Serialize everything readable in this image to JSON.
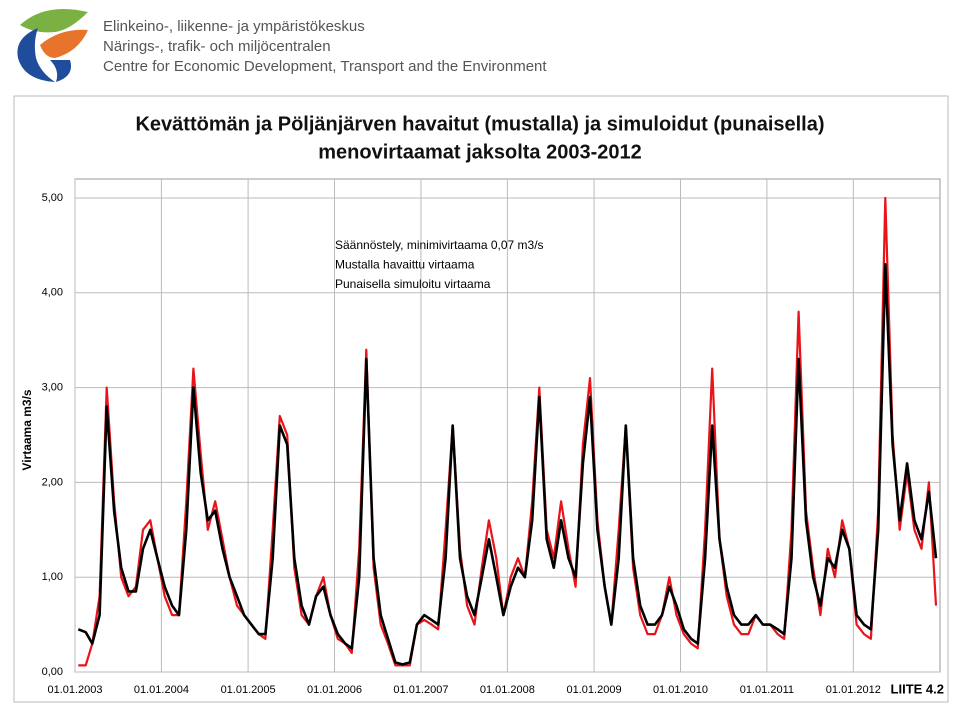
{
  "header": {
    "lines": [
      "Elinkeino-, liikenne- ja ympäristökeskus",
      "Närings-, trafik- och miljöcentralen",
      "Centre for Economic Development, Transport and the Environment"
    ]
  },
  "chart_data": {
    "type": "line",
    "title": [
      "Kevättömän ja Pöljänjärven havaitut (mustalla) ja simuloidut (punaisella)",
      "menovirtaamat jaksolta 2003-2012"
    ],
    "annotations": [
      "Säännöstely, minimivirtaama 0,07 m3/s",
      "Mustalla havaittu  virtaama",
      "Punaisella simuloitu virtaama"
    ],
    "ylabel": "Virtaama m3/s",
    "footer": "LIITE 4.2",
    "grid": true,
    "xlim": [
      "2003-01-01",
      "2013-01-01"
    ],
    "xticks": [
      {
        "value": "2003-01-01",
        "label": "01.01.2003"
      },
      {
        "value": "2004-01-01",
        "label": "01.01.2004"
      },
      {
        "value": "2005-01-01",
        "label": "01.01.2005"
      },
      {
        "value": "2006-01-01",
        "label": "01.01.2006"
      },
      {
        "value": "2007-01-01",
        "label": "01.01.2007"
      },
      {
        "value": "2008-01-01",
        "label": "01.01.2008"
      },
      {
        "value": "2009-01-01",
        "label": "01.01.2009"
      },
      {
        "value": "2010-01-01",
        "label": "01.01.2010"
      },
      {
        "value": "2011-01-01",
        "label": "01.01.2011"
      },
      {
        "value": "2012-01-01",
        "label": "01.01.2012"
      }
    ],
    "ylim": [
      0,
      5.2
    ],
    "yticks": [
      {
        "value": 0,
        "label": "0,00"
      },
      {
        "value": 1,
        "label": "1,00"
      },
      {
        "value": 2,
        "label": "2,00"
      },
      {
        "value": 3,
        "label": "3,00"
      },
      {
        "value": 4,
        "label": "4,00"
      },
      {
        "value": 5,
        "label": "5,00"
      }
    ],
    "x": [
      "2003-01-15",
      "2003-02-15",
      "2003-03-15",
      "2003-04-15",
      "2003-05-15",
      "2003-06-15",
      "2003-07-15",
      "2003-08-15",
      "2003-09-15",
      "2003-10-15",
      "2003-11-15",
      "2003-12-15",
      "2004-01-15",
      "2004-02-15",
      "2004-03-15",
      "2004-04-15",
      "2004-05-15",
      "2004-06-15",
      "2004-07-15",
      "2004-08-15",
      "2004-09-15",
      "2004-10-15",
      "2004-11-15",
      "2004-12-15",
      "2005-01-15",
      "2005-02-15",
      "2005-03-15",
      "2005-04-15",
      "2005-05-15",
      "2005-06-15",
      "2005-07-15",
      "2005-08-15",
      "2005-09-15",
      "2005-10-15",
      "2005-11-15",
      "2005-12-15",
      "2006-01-15",
      "2006-02-15",
      "2006-03-15",
      "2006-04-15",
      "2006-05-15",
      "2006-06-15",
      "2006-07-15",
      "2006-08-15",
      "2006-09-15",
      "2006-10-15",
      "2006-11-15",
      "2006-12-15",
      "2007-01-15",
      "2007-02-15",
      "2007-03-15",
      "2007-04-15",
      "2007-05-15",
      "2007-06-15",
      "2007-07-15",
      "2007-08-15",
      "2007-09-15",
      "2007-10-15",
      "2007-11-15",
      "2007-12-15",
      "2008-01-15",
      "2008-02-15",
      "2008-03-15",
      "2008-04-15",
      "2008-05-15",
      "2008-06-15",
      "2008-07-15",
      "2008-08-15",
      "2008-09-15",
      "2008-10-15",
      "2008-11-15",
      "2008-12-15",
      "2009-01-15",
      "2009-02-15",
      "2009-03-15",
      "2009-04-15",
      "2009-05-15",
      "2009-06-15",
      "2009-07-15",
      "2009-08-15",
      "2009-09-15",
      "2009-10-15",
      "2009-11-15",
      "2009-12-15",
      "2010-01-15",
      "2010-02-15",
      "2010-03-15",
      "2010-04-15",
      "2010-05-15",
      "2010-06-15",
      "2010-07-15",
      "2010-08-15",
      "2010-09-15",
      "2010-10-15",
      "2010-11-15",
      "2010-12-15",
      "2011-01-15",
      "2011-02-15",
      "2011-03-15",
      "2011-04-15",
      "2011-05-15",
      "2011-06-15",
      "2011-07-15",
      "2011-08-15",
      "2011-09-15",
      "2011-10-15",
      "2011-11-15",
      "2011-12-15",
      "2012-01-15",
      "2012-02-15",
      "2012-03-15",
      "2012-04-15",
      "2012-05-15",
      "2012-06-15",
      "2012-07-15",
      "2012-08-15",
      "2012-09-15",
      "2012-10-15",
      "2012-11-15",
      "2012-12-15"
    ],
    "series": [
      {
        "color": "#e8141a",
        "width": 2.2,
        "values": [
          0.07,
          0.07,
          0.3,
          0.8,
          3.0,
          1.8,
          1.0,
          0.8,
          0.9,
          1.5,
          1.6,
          1.2,
          0.8,
          0.6,
          0.6,
          1.8,
          3.2,
          2.3,
          1.5,
          1.8,
          1.4,
          1.0,
          0.7,
          0.6,
          0.5,
          0.4,
          0.35,
          1.5,
          2.7,
          2.5,
          1.1,
          0.6,
          0.5,
          0.8,
          1.0,
          0.6,
          0.35,
          0.3,
          0.2,
          1.3,
          3.4,
          1.1,
          0.5,
          0.3,
          0.07,
          0.07,
          0.07,
          0.5,
          0.55,
          0.5,
          0.45,
          1.5,
          2.6,
          1.3,
          0.7,
          0.5,
          1.1,
          1.6,
          1.2,
          0.6,
          1.0,
          1.2,
          1.0,
          1.8,
          3.0,
          1.5,
          1.2,
          1.8,
          1.3,
          0.9,
          2.4,
          3.1,
          1.6,
          0.9,
          0.5,
          1.5,
          2.6,
          1.1,
          0.6,
          0.4,
          0.4,
          0.6,
          1.0,
          0.6,
          0.4,
          0.3,
          0.25,
          1.5,
          3.2,
          1.4,
          0.8,
          0.5,
          0.4,
          0.4,
          0.6,
          0.5,
          0.5,
          0.4,
          0.35,
          1.5,
          3.8,
          1.7,
          1.1,
          0.6,
          1.3,
          1.0,
          1.6,
          1.3,
          0.5,
          0.4,
          0.35,
          1.7,
          5.0,
          2.5,
          1.5,
          2.1,
          1.5,
          1.3,
          2.0,
          0.7
        ]
      },
      {
        "color": "#000000",
        "width": 2.6,
        "values": [
          0.45,
          0.42,
          0.3,
          0.6,
          2.8,
          1.7,
          1.1,
          0.85,
          0.85,
          1.3,
          1.5,
          1.2,
          0.9,
          0.7,
          0.6,
          1.5,
          3.0,
          2.1,
          1.6,
          1.7,
          1.3,
          1.0,
          0.8,
          0.6,
          0.5,
          0.4,
          0.4,
          1.2,
          2.6,
          2.4,
          1.2,
          0.7,
          0.5,
          0.8,
          0.9,
          0.6,
          0.4,
          0.3,
          0.25,
          1.0,
          3.3,
          1.2,
          0.6,
          0.35,
          0.1,
          0.08,
          0.1,
          0.5,
          0.6,
          0.55,
          0.5,
          1.2,
          2.6,
          1.2,
          0.8,
          0.6,
          1.0,
          1.4,
          1.0,
          0.6,
          0.9,
          1.1,
          1.0,
          1.6,
          2.9,
          1.4,
          1.1,
          1.6,
          1.2,
          1.0,
          2.2,
          2.9,
          1.5,
          0.9,
          0.5,
          1.2,
          2.6,
          1.2,
          0.7,
          0.5,
          0.5,
          0.6,
          0.9,
          0.7,
          0.45,
          0.35,
          0.3,
          1.2,
          2.6,
          1.4,
          0.9,
          0.6,
          0.5,
          0.5,
          0.6,
          0.5,
          0.5,
          0.45,
          0.4,
          1.2,
          3.3,
          1.6,
          1.0,
          0.7,
          1.2,
          1.1,
          1.5,
          1.3,
          0.6,
          0.5,
          0.45,
          1.5,
          4.3,
          2.4,
          1.6,
          2.2,
          1.6,
          1.4,
          1.9,
          1.2
        ]
      }
    ]
  }
}
